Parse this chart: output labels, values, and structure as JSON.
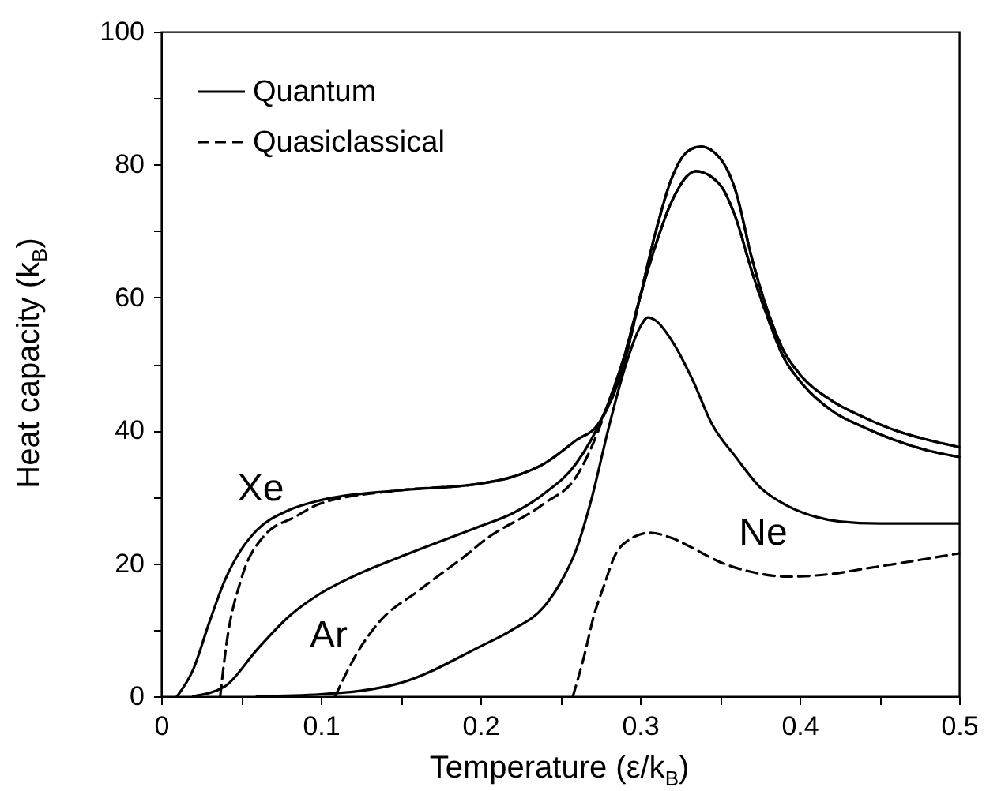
{
  "chart_data": {
    "type": "line",
    "xlabel": "Temperature (ε/k$_{B}$)",
    "ylabel": "Heat capacity (k$_{B}$)",
    "xlim": [
      0,
      0.5
    ],
    "ylim": [
      0,
      100
    ],
    "xticks": [
      0,
      {
        "value": 0.05,
        "label": null
      },
      0.1,
      {
        "value": 0.15,
        "label": null
      },
      0.2,
      {
        "value": 0.25,
        "label": null
      },
      0.3,
      {
        "value": 0.35,
        "label": null
      },
      0.4,
      {
        "value": 0.45,
        "label": null
      },
      0.5
    ],
    "yticks": [
      0,
      {
        "value": 10,
        "label": null
      },
      20,
      {
        "value": 30,
        "label": null
      },
      40,
      {
        "value": 50,
        "label": null
      },
      60,
      {
        "value": 70,
        "label": null
      },
      80,
      {
        "value": 90,
        "label": null
      },
      100
    ],
    "grid": false,
    "legend": "top left",
    "marker": "none",
    "annotations": [
      "Xe",
      "Ar",
      "Ne"
    ],
    "series": [
      {
        "name": "Quantum",
        "color": "#000000",
        "line_style": "solid",
        "x": [
          0.01,
          0.02,
          0.03,
          0.04,
          0.05,
          0.06,
          0.08,
          0.1,
          0.15,
          0.2,
          0.22,
          0.24,
          0.26,
          0.274,
          0.29,
          0.3,
          0.31,
          0.32,
          0.33,
          0.338,
          0.35,
          0.36,
          0.37,
          0.38,
          0.39,
          0.4,
          0.42,
          0.44,
          0.46,
          0.48,
          0.5
        ],
        "values": [
          0,
          4,
          11,
          17.5,
          22,
          25,
          28,
          29.5,
          31,
          32,
          33,
          35,
          38.5,
          41,
          50,
          60,
          70,
          78,
          82,
          82.7,
          81,
          76,
          66,
          58,
          52,
          48.5,
          44.5,
          42,
          40,
          38.6,
          37.5
        ]
      },
      {
        "name": "Quasiclassical",
        "color": "#000000",
        "line_style": "dashed",
        "x": [
          0.037,
          0.041,
          0.05,
          0.064,
          0.084,
          0.1,
          0.15,
          0.2,
          0.22,
          0.24,
          0.26,
          0.274,
          0.29,
          0.3,
          0.31,
          0.32,
          0.33,
          0.338,
          0.35,
          0.36,
          0.37,
          0.38,
          0.39,
          0.4,
          0.42,
          0.44,
          0.46,
          0.48,
          0.5
        ],
        "values": [
          0,
          8,
          17.5,
          24,
          27,
          29,
          31,
          32,
          33,
          35,
          38.5,
          41,
          50,
          60,
          70,
          78,
          82,
          82.7,
          81,
          76,
          66,
          58,
          52,
          48.5,
          44.5,
          42,
          40,
          38.6,
          37.5
        ]
      },
      {
        "color": "#000000",
        "line_style": "solid",
        "x": [
          0.02,
          0.04,
          0.06,
          0.08,
          0.1,
          0.12,
          0.15,
          0.2,
          0.22,
          0.24,
          0.26,
          0.28,
          0.29,
          0.3,
          0.31,
          0.32,
          0.335,
          0.35,
          0.36,
          0.37,
          0.38,
          0.39,
          0.4,
          0.42,
          0.44,
          0.46,
          0.48,
          0.5
        ],
        "values": [
          0,
          1.5,
          7,
          12,
          15.5,
          18,
          21,
          25.6,
          27.5,
          30.5,
          35,
          44,
          51,
          60,
          68,
          74.5,
          79,
          77,
          72,
          64,
          57,
          51,
          47.5,
          43,
          40.5,
          38.5,
          37,
          36
        ]
      },
      {
        "color": "#000000",
        "line_style": "dashed",
        "x": [
          0.109,
          0.123,
          0.136,
          0.162,
          0.195,
          0.2,
          0.24,
          0.26,
          0.274,
          0.28,
          0.29,
          0.3,
          0.31,
          0.32,
          0.335,
          0.35,
          0.36,
          0.37,
          0.38,
          0.39,
          0.4,
          0.42,
          0.44,
          0.46,
          0.48,
          0.5
        ],
        "values": [
          0,
          6.6,
          11,
          16,
          22,
          23,
          29,
          33,
          40,
          44,
          51,
          60,
          68,
          74.5,
          79,
          77,
          72,
          64,
          57,
          51,
          47.5,
          43,
          40.5,
          38.5,
          37,
          36
        ]
      },
      {
        "color": "#000000",
        "line_style": "solid",
        "x": [
          0.06,
          0.1,
          0.15,
          0.2,
          0.22,
          0.24,
          0.25,
          0.26,
          0.27,
          0.28,
          0.29,
          0.3,
          0.305,
          0.31,
          0.32,
          0.333,
          0.345,
          0.36,
          0.375,
          0.392,
          0.41,
          0.425,
          0.45,
          0.5
        ],
        "values": [
          0,
          0.3,
          2,
          7.5,
          10,
          13.5,
          17,
          22,
          30,
          40,
          49,
          55.5,
          57,
          56.5,
          53.5,
          47.6,
          41,
          36,
          31.5,
          28.7,
          27,
          26.3,
          26,
          26
        ]
      },
      {
        "color": "#000000",
        "line_style": "dashed",
        "x": [
          0.258,
          0.265,
          0.271,
          0.278,
          0.284,
          0.295,
          0.306,
          0.32,
          0.333,
          0.35,
          0.37,
          0.392,
          0.42,
          0.441,
          0.47,
          0.5
        ],
        "values": [
          0,
          6,
          12,
          17,
          21,
          23.8,
          24.6,
          23.8,
          22.3,
          20.2,
          18.7,
          18,
          18.4,
          19.2,
          20.3,
          21.5
        ]
      }
    ]
  }
}
